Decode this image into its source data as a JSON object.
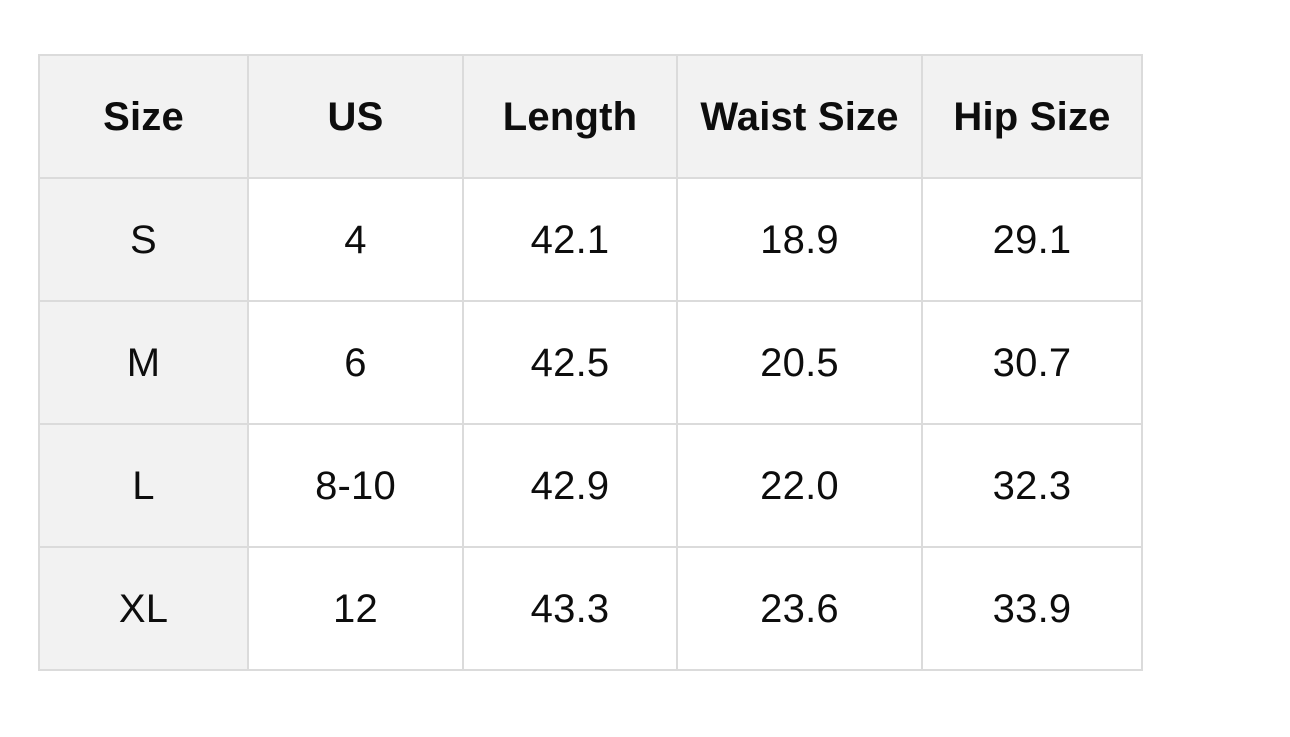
{
  "colors": {
    "page_background": "#ffffff",
    "header_background": "#f2f2f2",
    "row_label_background": "#f2f2f2",
    "border": "#dbdbdb",
    "text": "#0d0d0d"
  },
  "table": {
    "headers": [
      "Size",
      "US",
      "Length",
      "Waist Size",
      "Hip Size"
    ],
    "rows": [
      [
        "S",
        "4",
        "42.1",
        "18.9",
        "29.1"
      ],
      [
        "M",
        "6",
        "42.5",
        "20.5",
        "30.7"
      ],
      [
        "L",
        "8-10",
        "42.9",
        "22.0",
        "32.3"
      ],
      [
        "XL",
        "12",
        "43.3",
        "23.6",
        "33.9"
      ]
    ]
  },
  "chart_data": {
    "type": "table",
    "title": "",
    "columns": [
      "Size",
      "US",
      "Length",
      "Waist Size",
      "Hip Size"
    ],
    "rows": [
      {
        "Size": "S",
        "US": "4",
        "Length": 42.1,
        "Waist Size": 18.9,
        "Hip Size": 29.1
      },
      {
        "Size": "M",
        "US": "6",
        "Length": 42.5,
        "Waist Size": 20.5,
        "Hip Size": 30.7
      },
      {
        "Size": "L",
        "US": "8-10",
        "Length": 42.9,
        "Waist Size": 22.0,
        "Hip Size": 32.3
      },
      {
        "Size": "XL",
        "US": "12",
        "Length": 43.3,
        "Waist Size": 23.6,
        "Hip Size": 33.9
      }
    ],
    "layout_hints": {
      "header_shaded": true,
      "first_column_shaded": true,
      "grid": true
    }
  }
}
